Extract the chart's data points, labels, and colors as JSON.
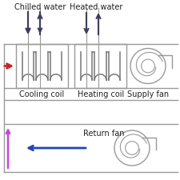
{
  "bg_color": "#ffffff",
  "line_color": "#999999",
  "dark_arrow_color": "#3d3d5c",
  "red_arrow_color": "#cc2222",
  "blue_arrow_color": "#2244bb",
  "pink_arrow_color": "#cc44dd",
  "text_color": "#222222",
  "labels": {
    "chilled_water": "Chilled water",
    "heated_water": "Heated water",
    "cooling_coil": "Cooling coil",
    "heating_coil": "Heating coil",
    "supply_fan": "Supply fan",
    "return_fan": "Return fan"
  }
}
